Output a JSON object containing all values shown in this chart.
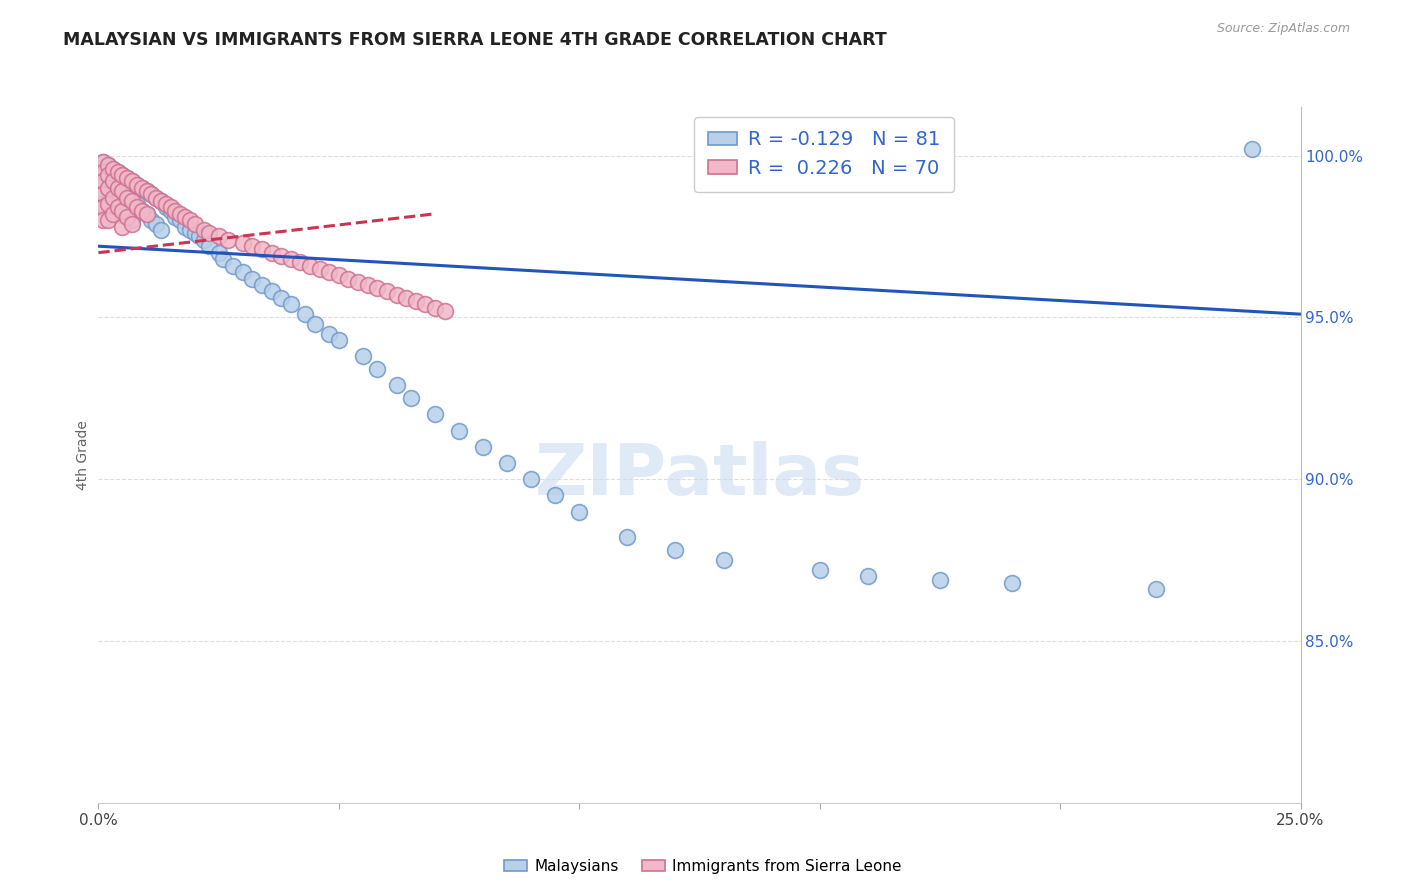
{
  "title": "MALAYSIAN VS IMMIGRANTS FROM SIERRA LEONE 4TH GRADE CORRELATION CHART",
  "source": "Source: ZipAtlas.com",
  "ylabel": "4th Grade",
  "xlim": [
    0.0,
    0.25
  ],
  "ylim": [
    0.8,
    1.015
  ],
  "xtick_positions": [
    0.0,
    0.05,
    0.1,
    0.15,
    0.2,
    0.25
  ],
  "xticklabels": [
    "0.0%",
    "",
    "",
    "",
    "",
    "25.0%"
  ],
  "ytick_right": [
    0.85,
    0.9,
    0.95,
    1.0
  ],
  "ytick_right_labels": [
    "85.0%",
    "90.0%",
    "95.0%",
    "100.0%"
  ],
  "legend_r_blue": "-0.129",
  "legend_n_blue": "81",
  "legend_r_pink": "0.226",
  "legend_n_pink": "70",
  "blue_face": "#b8d0e8",
  "blue_edge": "#7099cc",
  "pink_face": "#f0b8c8",
  "pink_edge": "#d07090",
  "blue_line": "#2255bb",
  "pink_line": "#cc3355",
  "watermark": "ZIPatlas",
  "blue_trend_x0": 0.0,
  "blue_trend_y0": 0.972,
  "blue_trend_x1": 0.25,
  "blue_trend_y1": 0.951,
  "pink_trend_x0": 0.0,
  "pink_trend_y0": 0.97,
  "pink_trend_x1": 0.07,
  "pink_trend_y1": 0.982,
  "malaysian_x": [
    0.001,
    0.001,
    0.001,
    0.001,
    0.001,
    0.002,
    0.002,
    0.002,
    0.002,
    0.003,
    0.003,
    0.003,
    0.003,
    0.004,
    0.004,
    0.004,
    0.004,
    0.005,
    0.005,
    0.005,
    0.006,
    0.006,
    0.006,
    0.007,
    0.007,
    0.007,
    0.008,
    0.008,
    0.009,
    0.009,
    0.01,
    0.01,
    0.011,
    0.011,
    0.012,
    0.012,
    0.013,
    0.013,
    0.014,
    0.015,
    0.016,
    0.017,
    0.018,
    0.019,
    0.02,
    0.021,
    0.022,
    0.023,
    0.025,
    0.026,
    0.028,
    0.03,
    0.032,
    0.034,
    0.036,
    0.038,
    0.04,
    0.043,
    0.045,
    0.048,
    0.05,
    0.055,
    0.058,
    0.062,
    0.065,
    0.07,
    0.075,
    0.08,
    0.085,
    0.09,
    0.095,
    0.1,
    0.11,
    0.12,
    0.13,
    0.15,
    0.16,
    0.175,
    0.19,
    0.22,
    0.24
  ],
  "malaysian_y": [
    0.998,
    0.995,
    0.992,
    0.988,
    0.985,
    0.997,
    0.994,
    0.99,
    0.986,
    0.996,
    0.993,
    0.988,
    0.984,
    0.995,
    0.991,
    0.987,
    0.982,
    0.994,
    0.99,
    0.985,
    0.993,
    0.988,
    0.983,
    0.992,
    0.987,
    0.98,
    0.991,
    0.985,
    0.99,
    0.983,
    0.989,
    0.982,
    0.988,
    0.98,
    0.987,
    0.979,
    0.986,
    0.977,
    0.984,
    0.983,
    0.981,
    0.98,
    0.978,
    0.977,
    0.976,
    0.975,
    0.974,
    0.972,
    0.97,
    0.968,
    0.966,
    0.964,
    0.962,
    0.96,
    0.958,
    0.956,
    0.954,
    0.951,
    0.948,
    0.945,
    0.943,
    0.938,
    0.934,
    0.929,
    0.925,
    0.92,
    0.915,
    0.91,
    0.905,
    0.9,
    0.895,
    0.89,
    0.882,
    0.878,
    0.875,
    0.872,
    0.87,
    0.869,
    0.868,
    0.866,
    1.002
  ],
  "sierra_leone_x": [
    0.001,
    0.001,
    0.001,
    0.001,
    0.001,
    0.001,
    0.002,
    0.002,
    0.002,
    0.002,
    0.002,
    0.003,
    0.003,
    0.003,
    0.003,
    0.004,
    0.004,
    0.004,
    0.005,
    0.005,
    0.005,
    0.005,
    0.006,
    0.006,
    0.006,
    0.007,
    0.007,
    0.007,
    0.008,
    0.008,
    0.009,
    0.009,
    0.01,
    0.01,
    0.011,
    0.012,
    0.013,
    0.014,
    0.015,
    0.016,
    0.017,
    0.018,
    0.019,
    0.02,
    0.022,
    0.023,
    0.025,
    0.027,
    0.03,
    0.032,
    0.034,
    0.036,
    0.038,
    0.04,
    0.042,
    0.044,
    0.046,
    0.048,
    0.05,
    0.052,
    0.054,
    0.056,
    0.058,
    0.06,
    0.062,
    0.064,
    0.066,
    0.068,
    0.07,
    0.072
  ],
  "sierra_leone_y": [
    0.998,
    0.995,
    0.992,
    0.988,
    0.984,
    0.98,
    0.997,
    0.994,
    0.99,
    0.985,
    0.98,
    0.996,
    0.992,
    0.987,
    0.982,
    0.995,
    0.99,
    0.984,
    0.994,
    0.989,
    0.983,
    0.978,
    0.993,
    0.987,
    0.981,
    0.992,
    0.986,
    0.979,
    0.991,
    0.984,
    0.99,
    0.983,
    0.989,
    0.982,
    0.988,
    0.987,
    0.986,
    0.985,
    0.984,
    0.983,
    0.982,
    0.981,
    0.98,
    0.979,
    0.977,
    0.976,
    0.975,
    0.974,
    0.973,
    0.972,
    0.971,
    0.97,
    0.969,
    0.968,
    0.967,
    0.966,
    0.965,
    0.964,
    0.963,
    0.962,
    0.961,
    0.96,
    0.959,
    0.958,
    0.957,
    0.956,
    0.955,
    0.954,
    0.953,
    0.952
  ]
}
